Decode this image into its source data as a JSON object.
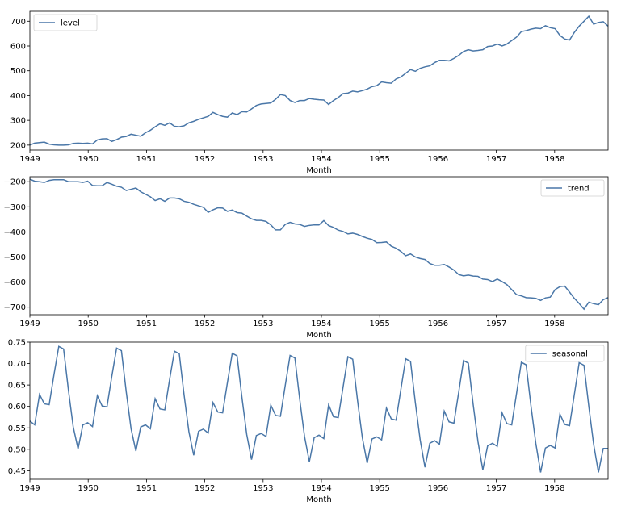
{
  "chart_data": [
    {
      "type": "line",
      "xlabel": "Month",
      "ylabel": "",
      "x_start": "1949-01",
      "x_end": "1958-12",
      "x_ticks": [
        "1949",
        "1950",
        "1951",
        "1952",
        "1953",
        "1954",
        "1955",
        "1956",
        "1957",
        "1958"
      ],
      "ylim": [
        180,
        740
      ],
      "y_ticks": [
        200,
        300,
        400,
        500,
        600,
        700
      ],
      "y_tick_labels": [
        "200",
        "300",
        "400",
        "500",
        "600",
        "700"
      ],
      "legend_position": "upper-left",
      "grid": false,
      "color": "#4a77a8",
      "series": [
        {
          "name": "level",
          "values": [
            200,
            208,
            210,
            212,
            204,
            201,
            200,
            200,
            201,
            207,
            208,
            207,
            208,
            205,
            221,
            225,
            226,
            215,
            222,
            232,
            235,
            244,
            240,
            236,
            250,
            260,
            274,
            286,
            280,
            290,
            276,
            274,
            278,
            290,
            296,
            304,
            310,
            316,
            332,
            323,
            316,
            313,
            330,
            323,
            335,
            334,
            346,
            360,
            366,
            368,
            370,
            385,
            404,
            400,
            380,
            372,
            380,
            380,
            388,
            385,
            383,
            382,
            364,
            380,
            392,
            408,
            410,
            418,
            415,
            420,
            426,
            436,
            440,
            455,
            452,
            450,
            467,
            475,
            490,
            505,
            498,
            510,
            516,
            520,
            533,
            542,
            542,
            540,
            550,
            562,
            578,
            585,
            580,
            582,
            585,
            598,
            600,
            608,
            600,
            608,
            622,
            636,
            658,
            662,
            668,
            672,
            670,
            682,
            674,
            670,
            643,
            628,
            624,
            655,
            680,
            700,
            720,
            688,
            695,
            698,
            680
          ]
        }
      ]
    },
    {
      "type": "line",
      "xlabel": "Month",
      "ylabel": "",
      "x_start": "1949-01",
      "x_end": "1958-12",
      "x_ticks": [
        "1949",
        "1950",
        "1951",
        "1952",
        "1953",
        "1954",
        "1955",
        "1956",
        "1957",
        "1958"
      ],
      "ylim": [
        -730,
        -180
      ],
      "y_ticks": [
        -200,
        -300,
        -400,
        -500,
        -600,
        -700
      ],
      "y_tick_labels": [
        "−200",
        "−300",
        "−400",
        "−500",
        "−600",
        "−700"
      ],
      "legend_position": "upper-right",
      "grid": false,
      "color": "#4a77a8",
      "series": [
        {
          "name": "trend",
          "values": [
            -190,
            -198,
            -200,
            -203,
            -195,
            -192,
            -192,
            -192,
            -200,
            -200,
            -200,
            -203,
            -198,
            -215,
            -216,
            -216,
            -203,
            -210,
            -218,
            -222,
            -235,
            -230,
            -225,
            -240,
            -250,
            -260,
            -275,
            -268,
            -278,
            -265,
            -265,
            -268,
            -278,
            -282,
            -290,
            -296,
            -302,
            -322,
            -312,
            -304,
            -305,
            -318,
            -313,
            -323,
            -325,
            -337,
            -348,
            -354,
            -354,
            -358,
            -372,
            -392,
            -392,
            -370,
            -362,
            -368,
            -370,
            -378,
            -374,
            -372,
            -372,
            -355,
            -375,
            -382,
            -393,
            -398,
            -408,
            -405,
            -410,
            -418,
            -425,
            -430,
            -443,
            -442,
            -440,
            -457,
            -465,
            -478,
            -495,
            -488,
            -500,
            -506,
            -510,
            -526,
            -533,
            -533,
            -530,
            -540,
            -552,
            -570,
            -575,
            -572,
            -576,
            -577,
            -588,
            -590,
            -598,
            -588,
            -598,
            -610,
            -630,
            -650,
            -655,
            -662,
            -663,
            -665,
            -673,
            -663,
            -660,
            -630,
            -618,
            -616,
            -640,
            -665,
            -685,
            -708,
            -680,
            -686,
            -690,
            -670,
            -662
          ]
        }
      ]
    },
    {
      "type": "line",
      "xlabel": "Month",
      "ylabel": "",
      "x_start": "1949-01",
      "x_end": "1958-12",
      "x_ticks": [
        "1949",
        "1950",
        "1951",
        "1952",
        "1953",
        "1954",
        "1955",
        "1956",
        "1957",
        "1958"
      ],
      "ylim": [
        0.43,
        0.75
      ],
      "y_ticks": [
        0.45,
        0.5,
        0.55,
        0.6,
        0.65,
        0.7,
        0.75
      ],
      "y_tick_labels": [
        "0.45",
        "0.50",
        "0.55",
        "0.60",
        "0.65",
        "0.70",
        "0.75"
      ],
      "legend_position": "upper-right",
      "grid": false,
      "color": "#4a77a8",
      "series": [
        {
          "name": "seasonal",
          "values": [
            0.566,
            0.557,
            0.628,
            0.606,
            0.604,
            0.674,
            0.74,
            0.734,
            0.638,
            0.552,
            0.501,
            0.557,
            0.562,
            0.553,
            0.625,
            0.601,
            0.599,
            0.67,
            0.736,
            0.73,
            0.634,
            0.548,
            0.496,
            0.552,
            0.557,
            0.548,
            0.618,
            0.594,
            0.592,
            0.663,
            0.729,
            0.723,
            0.627,
            0.541,
            0.486,
            0.542,
            0.547,
            0.538,
            0.609,
            0.587,
            0.585,
            0.656,
            0.724,
            0.718,
            0.622,
            0.535,
            0.476,
            0.532,
            0.537,
            0.53,
            0.603,
            0.579,
            0.577,
            0.649,
            0.719,
            0.713,
            0.617,
            0.53,
            0.471,
            0.527,
            0.533,
            0.525,
            0.604,
            0.576,
            0.574,
            0.645,
            0.716,
            0.71,
            0.614,
            0.527,
            0.468,
            0.524,
            0.529,
            0.522,
            0.596,
            0.571,
            0.568,
            0.64,
            0.711,
            0.705,
            0.609,
            0.522,
            0.458,
            0.514,
            0.52,
            0.512,
            0.589,
            0.564,
            0.561,
            0.633,
            0.707,
            0.701,
            0.605,
            0.518,
            0.452,
            0.508,
            0.514,
            0.507,
            0.585,
            0.56,
            0.557,
            0.63,
            0.703,
            0.697,
            0.601,
            0.514,
            0.446,
            0.503,
            0.509,
            0.503,
            0.582,
            0.558,
            0.555,
            0.628,
            0.702,
            0.696,
            0.6,
            0.512,
            0.446,
            0.502,
            0.502
          ]
        }
      ]
    }
  ]
}
